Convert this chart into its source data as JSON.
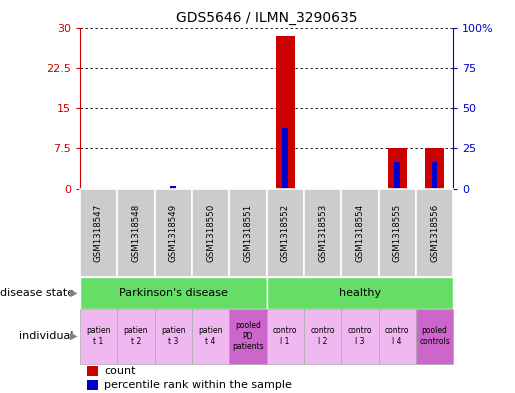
{
  "title": "GDS5646 / ILMN_3290635",
  "samples": [
    "GSM1318547",
    "GSM1318548",
    "GSM1318549",
    "GSM1318550",
    "GSM1318551",
    "GSM1318552",
    "GSM1318553",
    "GSM1318554",
    "GSM1318555",
    "GSM1318556"
  ],
  "count_values": [
    0,
    0,
    0,
    0,
    0,
    28.5,
    0,
    0,
    7.5,
    7.5
  ],
  "percentile_values": [
    0,
    0,
    1.5,
    0,
    0,
    37.5,
    0,
    0,
    16.5,
    16.5
  ],
  "count_color": "#cc0000",
  "percentile_color": "#0000cc",
  "ylim_left": [
    0,
    30
  ],
  "ylim_right": [
    0,
    100
  ],
  "yticks_left": [
    0,
    7.5,
    15,
    22.5,
    30
  ],
  "yticks_right": [
    0,
    25,
    50,
    75,
    100
  ],
  "ytick_labels_left": [
    "0",
    "7.5",
    "15",
    "22.5",
    "30"
  ],
  "ytick_labels_right": [
    "0",
    "25",
    "50",
    "75",
    "100%"
  ],
  "disease_state_groups": [
    {
      "label": "Parkinson's disease",
      "start": 0,
      "end": 4
    },
    {
      "label": "healthy",
      "start": 5,
      "end": 9
    }
  ],
  "individual_labels": [
    "patien\nt 1",
    "patien\nt 2",
    "patien\nt 3",
    "patien\nt 4",
    "pooled\nPD\npatients",
    "contro\nl 1",
    "contro\nl 2",
    "contro\nl 3",
    "contro\nl 4",
    "pooled\ncontrols"
  ],
  "individual_colors": [
    "#f0b8f0",
    "#f0b8f0",
    "#f0b8f0",
    "#f0b8f0",
    "#cc66cc",
    "#f0b8f0",
    "#f0b8f0",
    "#f0b8f0",
    "#f0b8f0",
    "#cc66cc"
  ],
  "disease_state_label": "disease state",
  "individual_label": "individual",
  "legend_count": "count",
  "legend_percentile": "percentile rank within the sample",
  "bar_width": 0.5,
  "sample_bg_color": "#cccccc",
  "green_color": "#66dd66"
}
